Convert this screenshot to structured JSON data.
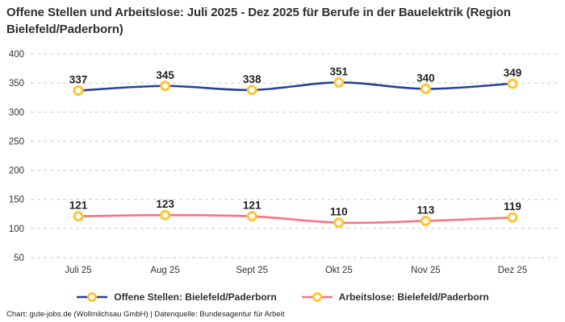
{
  "page": {
    "title": "Offene Stellen und Arbeitslose: Juli 2025 - Dez 2025 für Berufe in der Bauelektrik (Region Bielefeld/Paderborn)",
    "footer": "Chart: gute-jobs.de (Wollmilchsau GmbH) | Datenquelle: Bundesagentur für Arbeit"
  },
  "colors": {
    "offene_stellen_line": "#26409c",
    "arbeitslose_line": "#fa7183",
    "marker_ring": "#ffc52f",
    "marker_fill": "#ffffff",
    "gridline": "#cccccc",
    "title_text": "#2e2e2e",
    "tick_text": "#333333",
    "data_label_text": "#222222"
  },
  "chart_data": {
    "type": "line",
    "title": "Offene Stellen und Arbeitslose: Juli 2025 - Dez 2025 für Berufe in der Bauelektrik (Region Bielefeld/Paderborn)",
    "categories": [
      "Juli 25",
      "Aug 25",
      "Sept 25",
      "Okt 25",
      "Nov 25",
      "Dez 25"
    ],
    "series": [
      {
        "name": "Offene Stellen: Bielefeld/Paderborn",
        "values": [
          337,
          345,
          338,
          351,
          340,
          349
        ],
        "color": "#26409c"
      },
      {
        "name": "Arbeitslose: Bielefeld/Paderborn",
        "values": [
          121,
          123,
          121,
          110,
          113,
          119
        ],
        "color": "#fa7183"
      }
    ],
    "ylim": [
      50,
      400
    ],
    "yticks": [
      400,
      350,
      300,
      250,
      200,
      150,
      100,
      50
    ],
    "xlabel": "",
    "ylabel": "",
    "grid": true,
    "gridline_style": "dashed",
    "legend_position": "bottom",
    "data_labels": true,
    "marker": {
      "shape": "circle",
      "fill": "#ffffff",
      "stroke": "#ffc52f"
    }
  }
}
